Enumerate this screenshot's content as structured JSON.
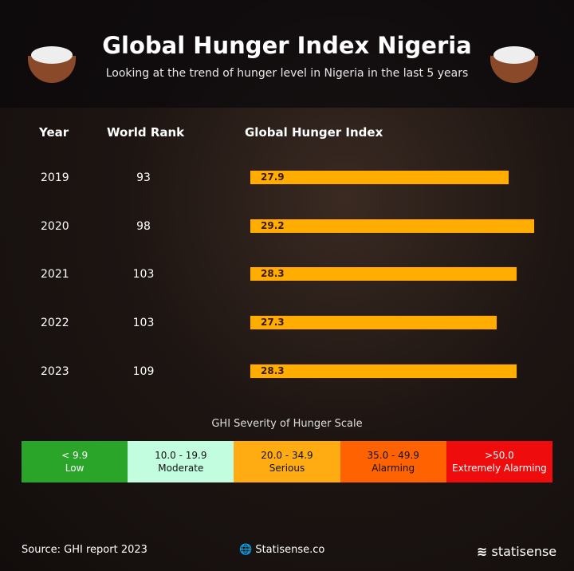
{
  "header": {
    "title": "Global  Hunger Index Nigeria",
    "subtitle": "Looking at the trend of hunger level in Nigeria in the last 5 years"
  },
  "columns": {
    "year": "Year",
    "rank": "World Rank",
    "ghi": "Global Hunger Index"
  },
  "chart_data": {
    "type": "bar",
    "orientation": "horizontal",
    "categories": [
      "2019",
      "2020",
      "2021",
      "2022",
      "2023"
    ],
    "values": [
      27.9,
      29.2,
      28.3,
      27.3,
      28.3
    ],
    "world_rank": [
      93,
      98,
      103,
      103,
      109
    ],
    "color": "#ffad00"
  },
  "scale": {
    "title": "GHI Severity of Hunger Scale",
    "items": [
      {
        "range": "< 9.9",
        "label": "Low",
        "color": "#2aa52a",
        "text": "#ffffff"
      },
      {
        "range": "10.0 - 19.9",
        "label": "Moderate",
        "color": "#c2fde0",
        "text": "#111111"
      },
      {
        "range": "20.0 - 34.9",
        "label": "Serious",
        "color": "#ffab12",
        "text": "#111111"
      },
      {
        "range": "35.0 - 49.9",
        "label": "Alarming",
        "color": "#ff6200",
        "text": "#111111"
      },
      {
        "range": ">50.0",
        "label": "Extremely Alarming",
        "color": "#ee0c0c",
        "text": "#ffffff"
      }
    ]
  },
  "footer": {
    "source": "Source: GHI report 2023",
    "website": "Statisense.co",
    "brand": "statisense"
  }
}
